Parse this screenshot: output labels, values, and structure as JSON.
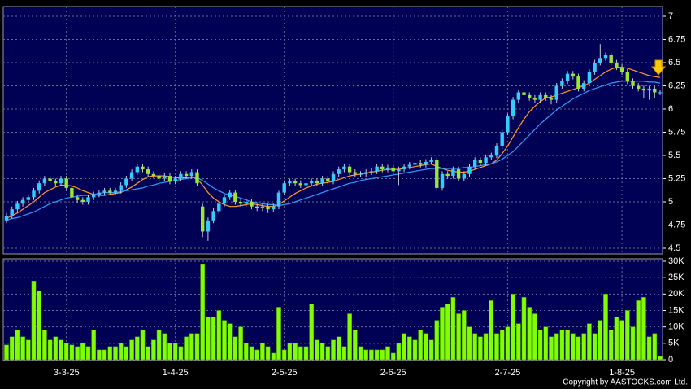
{
  "chart_data": {
    "type": "candlestick",
    "categories": [
      null,
      null,
      null,
      null,
      null,
      null,
      null,
      null,
      null,
      null,
      null,
      "3-3-25",
      null,
      null,
      null,
      null,
      null,
      null,
      null,
      null,
      null,
      null,
      null,
      null,
      null,
      null,
      null,
      null,
      null,
      null,
      null,
      "1-4-25",
      null,
      null,
      null,
      null,
      null,
      null,
      null,
      null,
      null,
      null,
      null,
      null,
      null,
      null,
      null,
      null,
      null,
      null,
      null,
      "2-5-25",
      null,
      null,
      null,
      null,
      null,
      null,
      null,
      null,
      null,
      null,
      null,
      null,
      null,
      null,
      null,
      null,
      null,
      null,
      null,
      "2-6-25",
      null,
      null,
      null,
      null,
      null,
      null,
      null,
      null,
      null,
      null,
      null,
      null,
      null,
      null,
      null,
      null,
      null,
      null,
      null,
      null,
      "2-7-25",
      null,
      null,
      null,
      null,
      null,
      null,
      null,
      null,
      null,
      null,
      null,
      null,
      null,
      null,
      null,
      null,
      null,
      null,
      null,
      null,
      "1-8-25",
      null,
      null,
      null,
      null,
      null,
      null,
      null
    ],
    "ohlc": [
      [
        4.8,
        4.88,
        4.77,
        4.85
      ],
      [
        4.85,
        4.95,
        4.82,
        4.92
      ],
      [
        4.92,
        5.01,
        4.89,
        4.98
      ],
      [
        4.98,
        5.05,
        4.95,
        5.02
      ],
      [
        5.02,
        5.08,
        4.99,
        5.05
      ],
      [
        5.05,
        5.15,
        5.02,
        5.12
      ],
      [
        5.12,
        5.23,
        5.09,
        5.2
      ],
      [
        5.2,
        5.28,
        5.17,
        5.25
      ],
      [
        5.25,
        5.28,
        5.19,
        5.22
      ],
      [
        5.22,
        5.25,
        5.17,
        5.2
      ],
      [
        5.2,
        5.28,
        5.17,
        5.25
      ],
      [
        5.25,
        5.28,
        5.12,
        5.15
      ],
      [
        5.15,
        5.18,
        5.02,
        5.05
      ],
      [
        5.05,
        5.08,
        4.99,
        5.02
      ],
      [
        5.02,
        5.05,
        4.97,
        5.0
      ],
      [
        5.0,
        5.08,
        4.97,
        5.05
      ],
      [
        5.05,
        5.11,
        5.02,
        5.08
      ],
      [
        5.08,
        5.13,
        5.05,
        5.1
      ],
      [
        5.1,
        5.15,
        5.07,
        5.12
      ],
      [
        5.12,
        5.15,
        5.07,
        5.1
      ],
      [
        5.1,
        5.15,
        5.07,
        5.12
      ],
      [
        5.12,
        5.21,
        5.09,
        5.18
      ],
      [
        5.18,
        5.28,
        5.15,
        5.25
      ],
      [
        5.25,
        5.35,
        5.22,
        5.32
      ],
      [
        5.32,
        5.41,
        5.29,
        5.38
      ],
      [
        5.38,
        5.41,
        5.32,
        5.35
      ],
      [
        5.35,
        5.38,
        5.27,
        5.3
      ],
      [
        5.3,
        5.33,
        5.25,
        5.28
      ],
      [
        5.28,
        5.31,
        5.22,
        5.25
      ],
      [
        5.25,
        5.31,
        5.22,
        5.28
      ],
      [
        5.28,
        5.31,
        5.19,
        5.22
      ],
      [
        5.22,
        5.28,
        5.19,
        5.25
      ],
      [
        5.25,
        5.33,
        5.22,
        5.3
      ],
      [
        5.3,
        5.33,
        5.25,
        5.28
      ],
      [
        5.28,
        5.35,
        5.25,
        5.32
      ],
      [
        5.32,
        5.35,
        5.17,
        5.2
      ],
      [
        4.95,
        4.98,
        4.62,
        4.68
      ],
      [
        4.68,
        4.83,
        4.58,
        4.8
      ],
      [
        4.8,
        4.93,
        4.77,
        4.9
      ],
      [
        4.9,
        5.01,
        4.87,
        4.98
      ],
      [
        4.98,
        5.08,
        4.95,
        5.05
      ],
      [
        5.05,
        5.13,
        5.02,
        5.1
      ],
      [
        5.1,
        5.13,
        4.97,
        5.0
      ],
      [
        5.0,
        5.03,
        4.95,
        4.98
      ],
      [
        4.98,
        5.03,
        4.95,
        5.0
      ],
      [
        5.0,
        5.03,
        4.92,
        4.95
      ],
      [
        4.95,
        4.98,
        4.9,
        4.93
      ],
      [
        4.93,
        4.98,
        4.9,
        4.95
      ],
      [
        4.95,
        4.98,
        4.88,
        4.92
      ],
      [
        4.92,
        4.98,
        4.89,
        4.95
      ],
      [
        4.95,
        5.12,
        4.92,
        5.1
      ],
      [
        5.1,
        5.23,
        5.07,
        5.2
      ],
      [
        5.2,
        5.25,
        5.17,
        5.22
      ],
      [
        5.22,
        5.25,
        5.17,
        5.2
      ],
      [
        5.2,
        5.23,
        5.15,
        5.18
      ],
      [
        5.18,
        5.23,
        5.15,
        5.2
      ],
      [
        5.2,
        5.25,
        5.17,
        5.22
      ],
      [
        5.22,
        5.25,
        5.17,
        5.2
      ],
      [
        5.2,
        5.28,
        5.17,
        5.25
      ],
      [
        5.25,
        5.28,
        5.19,
        5.22
      ],
      [
        5.22,
        5.33,
        5.19,
        5.3
      ],
      [
        5.3,
        5.38,
        5.27,
        5.35
      ],
      [
        5.35,
        5.41,
        5.32,
        5.38
      ],
      [
        5.38,
        5.41,
        5.29,
        5.32
      ],
      [
        5.32,
        5.35,
        5.27,
        5.3
      ],
      [
        5.3,
        5.33,
        5.27,
        5.3
      ],
      [
        5.3,
        5.35,
        5.27,
        5.32
      ],
      [
        5.32,
        5.36,
        5.29,
        5.33
      ],
      [
        5.33,
        5.41,
        5.3,
        5.38
      ],
      [
        5.38,
        5.41,
        5.32,
        5.35
      ],
      [
        5.35,
        5.4,
        5.32,
        5.37
      ],
      [
        5.37,
        5.4,
        5.3,
        5.33
      ],
      [
        5.33,
        5.38,
        5.18,
        5.35
      ],
      [
        5.35,
        5.41,
        5.32,
        5.38
      ],
      [
        5.38,
        5.43,
        5.35,
        5.4
      ],
      [
        5.4,
        5.45,
        5.37,
        5.42
      ],
      [
        5.42,
        5.45,
        5.37,
        5.4
      ],
      [
        5.4,
        5.46,
        5.37,
        5.43
      ],
      [
        5.43,
        5.48,
        5.4,
        5.45
      ],
      [
        5.45,
        5.48,
        5.12,
        5.15
      ],
      [
        5.15,
        5.33,
        5.12,
        5.3
      ],
      [
        5.3,
        5.33,
        5.25,
        5.28
      ],
      [
        5.28,
        5.38,
        5.25,
        5.35
      ],
      [
        5.35,
        5.38,
        5.22,
        5.25
      ],
      [
        5.25,
        5.33,
        5.22,
        5.3
      ],
      [
        5.3,
        5.41,
        5.27,
        5.38
      ],
      [
        5.38,
        5.48,
        5.35,
        5.45
      ],
      [
        5.45,
        5.48,
        5.39,
        5.42
      ],
      [
        5.42,
        5.51,
        5.39,
        5.48
      ],
      [
        5.48,
        5.53,
        5.45,
        5.5
      ],
      [
        5.5,
        5.63,
        5.47,
        5.6
      ],
      [
        5.6,
        5.78,
        5.57,
        5.75
      ],
      [
        5.75,
        5.95,
        5.72,
        5.92
      ],
      [
        5.92,
        6.13,
        5.89,
        6.1
      ],
      [
        6.1,
        6.21,
        6.07,
        6.18
      ],
      [
        6.18,
        6.23,
        6.12,
        6.15
      ],
      [
        6.15,
        6.18,
        6.09,
        6.12
      ],
      [
        6.12,
        6.15,
        6.07,
        6.1
      ],
      [
        6.1,
        6.18,
        6.07,
        6.15
      ],
      [
        6.15,
        6.18,
        6.09,
        6.12
      ],
      [
        6.12,
        6.15,
        6.05,
        6.1
      ],
      [
        6.1,
        6.28,
        6.07,
        6.25
      ],
      [
        6.25,
        6.33,
        6.22,
        6.3
      ],
      [
        6.3,
        6.41,
        6.27,
        6.38
      ],
      [
        6.38,
        6.41,
        6.32,
        6.35
      ],
      [
        6.35,
        6.38,
        6.19,
        6.22
      ],
      [
        6.22,
        6.31,
        6.19,
        6.28
      ],
      [
        6.28,
        6.43,
        6.25,
        6.4
      ],
      [
        6.4,
        6.53,
        6.37,
        6.5
      ],
      [
        6.5,
        6.7,
        6.47,
        6.55
      ],
      [
        6.55,
        6.61,
        6.52,
        6.58
      ],
      [
        6.58,
        6.61,
        6.47,
        6.5
      ],
      [
        6.5,
        6.53,
        6.42,
        6.45
      ],
      [
        6.45,
        6.48,
        6.37,
        6.4
      ],
      [
        6.4,
        6.43,
        6.27,
        6.3
      ],
      [
        6.3,
        6.33,
        6.22,
        6.25
      ],
      [
        6.25,
        6.28,
        6.19,
        6.22
      ],
      [
        6.22,
        6.25,
        6.12,
        6.2
      ],
      [
        6.2,
        6.25,
        6.1,
        6.22
      ],
      [
        6.22,
        6.25,
        6.12,
        6.18
      ],
      [
        6.18,
        6.2,
        6.15,
        6.18
      ]
    ],
    "up_color": "#33ccff",
    "down_color": "#99e633",
    "series": [
      {
        "color": "#ff9933",
        "values": [
          4.82,
          4.85,
          4.88,
          4.92,
          4.96,
          5.0,
          5.05,
          5.1,
          5.13,
          5.16,
          5.18,
          5.18,
          5.17,
          5.15,
          5.12,
          5.1,
          5.08,
          5.07,
          5.07,
          5.08,
          5.09,
          5.1,
          5.13,
          5.16,
          5.2,
          5.24,
          5.27,
          5.28,
          5.28,
          5.28,
          5.27,
          5.26,
          5.26,
          5.26,
          5.27,
          5.25,
          5.18,
          5.1,
          5.04,
          5.0,
          4.97,
          4.95,
          4.95,
          4.96,
          4.97,
          4.98,
          4.97,
          4.96,
          4.95,
          4.95,
          4.97,
          5.01,
          5.05,
          5.09,
          5.12,
          5.15,
          5.17,
          5.19,
          5.2,
          5.21,
          5.22,
          5.24,
          5.26,
          5.28,
          5.29,
          5.3,
          5.31,
          5.32,
          5.33,
          5.34,
          5.35,
          5.35,
          5.35,
          5.36,
          5.37,
          5.38,
          5.39,
          5.4,
          5.41,
          5.38,
          5.36,
          5.34,
          5.33,
          5.32,
          5.32,
          5.33,
          5.35,
          5.37,
          5.39,
          5.41,
          5.45,
          5.52,
          5.6,
          5.7,
          5.8,
          5.89,
          5.97,
          6.03,
          6.08,
          6.12,
          6.13,
          6.15,
          6.17,
          6.19,
          6.21,
          6.23,
          6.25,
          6.28,
          6.32,
          6.36,
          6.4,
          6.43,
          6.45,
          6.45,
          6.44,
          6.42,
          6.4,
          6.38,
          6.36,
          6.35,
          6.34
        ]
      },
      {
        "color": "#3399ff",
        "values": [
          4.8,
          4.82,
          4.83,
          4.85,
          4.87,
          4.89,
          4.92,
          4.95,
          4.98,
          5.0,
          5.02,
          5.04,
          5.05,
          5.06,
          5.07,
          5.07,
          5.08,
          5.09,
          5.1,
          5.1,
          5.1,
          5.11,
          5.12,
          5.13,
          5.14,
          5.15,
          5.17,
          5.18,
          5.2,
          5.21,
          5.22,
          5.23,
          5.24,
          5.25,
          5.26,
          5.26,
          5.23,
          5.19,
          5.15,
          5.12,
          5.09,
          5.07,
          5.06,
          5.04,
          5.02,
          5.0,
          4.99,
          4.98,
          4.97,
          4.97,
          4.96,
          4.97,
          4.98,
          5.0,
          5.02,
          5.04,
          5.06,
          5.08,
          5.1,
          5.12,
          5.14,
          5.16,
          5.18,
          5.2,
          5.21,
          5.23,
          5.24,
          5.25,
          5.26,
          5.27,
          5.28,
          5.29,
          5.3,
          5.31,
          5.32,
          5.33,
          5.34,
          5.35,
          5.36,
          5.36,
          5.36,
          5.36,
          5.36,
          5.36,
          5.37,
          5.37,
          5.38,
          5.39,
          5.4,
          5.41,
          5.43,
          5.46,
          5.5,
          5.54,
          5.6,
          5.66,
          5.72,
          5.78,
          5.84,
          5.89,
          5.94,
          5.99,
          6.03,
          6.07,
          6.11,
          6.14,
          6.17,
          6.2,
          6.22,
          6.24,
          6.26,
          6.28,
          6.29,
          6.3,
          6.3,
          6.3,
          6.3,
          6.3,
          6.29,
          6.29,
          6.28
        ]
      }
    ],
    "ylim": [
      4.5,
      7
    ],
    "yticks": [
      4.5,
      4.75,
      5,
      5.25,
      5.5,
      5.75,
      6,
      6.25,
      6.5,
      6.75,
      7
    ],
    "grid": true,
    "volume": {
      "color": "#80ff00",
      "values": [
        4500,
        7000,
        9000,
        7000,
        6000,
        24000,
        21000,
        9000,
        6000,
        7000,
        6000,
        5000,
        4500,
        4000,
        5000,
        4000,
        9000,
        3000,
        3000,
        4000,
        4000,
        5000,
        4000,
        6000,
        7000,
        9000,
        4000,
        6000,
        9000,
        8000,
        5000,
        5000,
        4000,
        7000,
        8000,
        8000,
        29000,
        13000,
        13000,
        15000,
        12000,
        11000,
        7000,
        10000,
        5000,
        4000,
        3000,
        5000,
        4000,
        2000,
        16000,
        3000,
        5000,
        5000,
        4000,
        4000,
        17000,
        6000,
        5000,
        4000,
        6000,
        7000,
        4000,
        14000,
        9000,
        4000,
        3000,
        3000,
        3000,
        3000,
        4000,
        2000,
        5000,
        8000,
        7000,
        6000,
        9000,
        8000,
        6000,
        12000,
        16000,
        17000,
        19000,
        14000,
        15000,
        10000,
        8000,
        7000,
        8000,
        18000,
        8000,
        9000,
        10000,
        20000,
        11000,
        19000,
        16000,
        14000,
        9000,
        10000,
        7000,
        8000,
        9000,
        9000,
        8000,
        7000,
        8000,
        11000,
        8000,
        12000,
        20000,
        9000,
        13000,
        12000,
        15000,
        10000,
        18000,
        19000,
        7000,
        8000,
        1000
      ],
      "ylim": [
        0,
        30000
      ],
      "yticks": [
        0,
        {
          "value": 5000,
          "label": "5K"
        },
        {
          "value": 10000,
          "label": "10K"
        },
        {
          "value": 15000,
          "label": "15K"
        },
        {
          "value": 20000,
          "label": "20K"
        },
        {
          "value": 25000,
          "label": "25K"
        },
        {
          "value": 30000,
          "label": "30K"
        }
      ]
    },
    "copyright": "Copyright by AASTOCKS.com Ltd."
  }
}
